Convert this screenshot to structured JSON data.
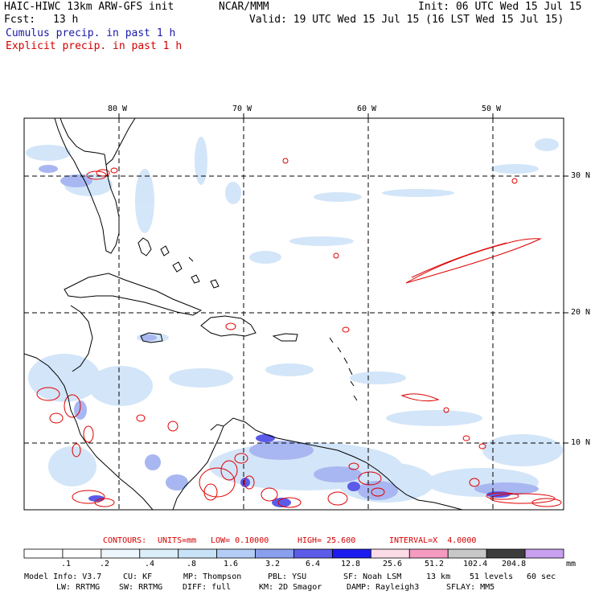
{
  "header": {
    "title": "HAIC-HIWC 13km ARW-GFS init",
    "org": "NCAR/MMM",
    "init": "Init: 06 UTC Wed 15 Jul 15",
    "fcst_label": "Fcst:",
    "fcst_value": "13 h",
    "valid": "Valid: 19 UTC Wed 15 Jul 15 (16 LST Wed 15 Jul 15)",
    "cumulus": "Cumulus precip. in past 1 h",
    "explicit": "Explicit precip. in past 1 h"
  },
  "map": {
    "lon_labels": [
      "80 W",
      "70 W",
      "60 W",
      "50 W"
    ],
    "lat_labels": [
      "30 N",
      "20 N",
      "10 N"
    ]
  },
  "contours": {
    "heading": "CONTOURS:",
    "units": "UNITS=mm",
    "low": "LOW= 0.10000",
    "high": "HIGH= 25.600",
    "interval": "INTERVAL=X  4.0000"
  },
  "colorbar": {
    "labels": [
      ".1",
      ".2",
      ".4",
      ".8",
      "1.6",
      "3.2",
      "6.4",
      "12.8",
      "25.6",
      "51.2",
      "102.4",
      "204.8"
    ],
    "unit": "mm",
    "colors": [
      "#ffffff",
      "#ffffff",
      "#eef6fd",
      "#ddeefb",
      "#c8e2f8",
      "#b4cdf6",
      "#8aa0ee",
      "#5c5ce8",
      "#1c1cf0",
      "#fbdbe6",
      "#f59ac0",
      "#c8c8c8",
      "#3c3c3c",
      "#c8a0f0"
    ]
  },
  "model_info": {
    "line1": [
      "Model Info: V3.7",
      "CU: KF",
      "MP: Thompson",
      "PBL: YSU",
      "SF: Noah LSM",
      "13 km",
      "51 levels",
      "60 sec"
    ],
    "line2": [
      "LW: RRTMG",
      "SW: RRTMG",
      "DIFF: full",
      "KM: 2D Smagor",
      "DAMP: Rayleigh3",
      "SFLAY: MM5"
    ]
  }
}
